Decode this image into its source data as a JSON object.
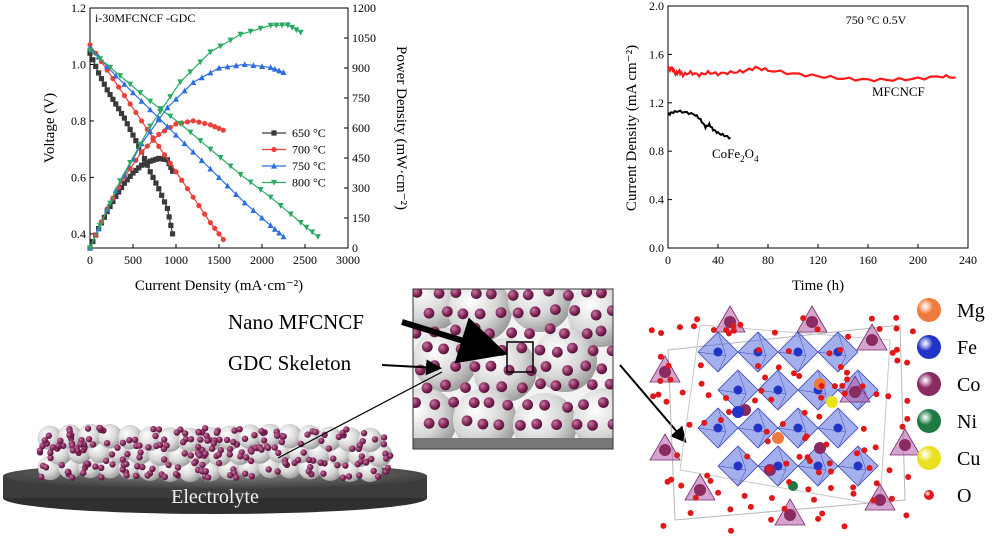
{
  "left_chart": {
    "title": "i-30MFCNCF -GDC",
    "xlabel": "Current Density (mA·cm⁻²)",
    "ylabel_left": "Voltage (V)",
    "ylabel_right": "Power Density (mW·cm⁻²)",
    "xticks": [
      "0",
      "500",
      "1000",
      "1500",
      "2000",
      "2500",
      "3000"
    ],
    "yticks_left": [
      "0.4",
      "0.6",
      "0.8",
      "1.0",
      "1.2"
    ],
    "yticks_right": [
      "0",
      "150",
      "300",
      "450",
      "600",
      "750",
      "900",
      "1050",
      "1200"
    ],
    "legend": [
      "650 °C",
      "700 °C",
      "750 °C",
      "800 °C"
    ]
  },
  "right_chart": {
    "annotation": "750 °C   0.5V",
    "xlabel": "Time (h)",
    "ylabel": "Current Density (mA cm⁻²)",
    "xticks": [
      "0",
      "40",
      "80",
      "120",
      "160",
      "200",
      "240"
    ],
    "yticks": [
      "0.0",
      "0.4",
      "0.8",
      "1.2",
      "1.6",
      "2.0"
    ],
    "label_mfcncf": "MFCNCF",
    "label_cofe_main": "CoFe",
    "label_cofe_sub1": "2",
    "label_cofe_mid": "O",
    "label_cofe_sub2": "4"
  },
  "chart_data": [
    {
      "type": "line",
      "title": "i-30MFCNCF -GDC",
      "xlabel": "Current Density (mA·cm⁻²)",
      "ylabel": "Voltage (V)",
      "y2label": "Power Density (mW·cm⁻²)",
      "xlim": [
        0,
        3000
      ],
      "ylim": [
        0.35,
        1.2
      ],
      "y2lim": [
        0,
        1200
      ],
      "legend_position": "right-middle",
      "series": [
        {
          "name": "650 °C",
          "color": "#3a3a3a",
          "marker": "square",
          "voltage": [
            [
              0,
              1.04
            ],
            [
              100,
              0.97
            ],
            [
              200,
              0.91
            ],
            [
              300,
              0.86
            ],
            [
              400,
              0.81
            ],
            [
              500,
              0.75
            ],
            [
              600,
              0.69
            ],
            [
              700,
              0.62
            ],
            [
              800,
              0.56
            ],
            [
              900,
              0.49
            ],
            [
              960,
              0.4
            ]
          ],
          "power": [
            [
              0,
              0
            ],
            [
              100,
              97
            ],
            [
              200,
              182
            ],
            [
              300,
              258
            ],
            [
              400,
              324
            ],
            [
              500,
              375
            ],
            [
              600,
              414
            ],
            [
              700,
              434
            ],
            [
              800,
              448
            ],
            [
              900,
              441
            ],
            [
              960,
              384
            ]
          ]
        },
        {
          "name": "700 °C",
          "color": "#e8403a",
          "marker": "circle",
          "voltage": [
            [
              0,
              1.07
            ],
            [
              200,
              0.98
            ],
            [
              400,
              0.89
            ],
            [
              600,
              0.8
            ],
            [
              800,
              0.71
            ],
            [
              1000,
              0.62
            ],
            [
              1200,
              0.53
            ],
            [
              1400,
              0.44
            ],
            [
              1550,
              0.38
            ]
          ],
          "power": [
            [
              0,
              0
            ],
            [
              200,
              196
            ],
            [
              400,
              356
            ],
            [
              600,
              480
            ],
            [
              800,
              568
            ],
            [
              1000,
              620
            ],
            [
              1200,
              636
            ],
            [
              1400,
              616
            ],
            [
              1550,
              589
            ]
          ]
        },
        {
          "name": "750 °C",
          "color": "#2f6ee0",
          "marker": "triangle-up",
          "voltage": [
            [
              0,
              1.06
            ],
            [
              300,
              0.96
            ],
            [
              600,
              0.87
            ],
            [
              900,
              0.78
            ],
            [
              1200,
              0.69
            ],
            [
              1500,
              0.6
            ],
            [
              1800,
              0.51
            ],
            [
              2100,
              0.43
            ],
            [
              2250,
              0.39
            ]
          ],
          "power": [
            [
              0,
              0
            ],
            [
              300,
              288
            ],
            [
              600,
              522
            ],
            [
              900,
              702
            ],
            [
              1200,
              828
            ],
            [
              1500,
              900
            ],
            [
              1800,
              918
            ],
            [
              2100,
              903
            ],
            [
              2250,
              878
            ]
          ]
        },
        {
          "name": "800 °C",
          "color": "#2aaa63",
          "marker": "triangle-down",
          "voltage": [
            [
              0,
              1.05
            ],
            [
              350,
              0.96
            ],
            [
              700,
              0.87
            ],
            [
              1050,
              0.79
            ],
            [
              1400,
              0.7
            ],
            [
              1750,
              0.61
            ],
            [
              2100,
              0.53
            ],
            [
              2450,
              0.44
            ],
            [
              2650,
              0.39
            ]
          ],
          "power": [
            [
              0,
              0
            ],
            [
              350,
              336
            ],
            [
              700,
              609
            ],
            [
              1050,
              830
            ],
            [
              1400,
              980
            ],
            [
              1750,
              1068
            ],
            [
              2100,
              1113
            ],
            [
              2300,
              1115
            ],
            [
              2450,
              1078
            ]
          ]
        }
      ]
    },
    {
      "type": "line",
      "xlabel": "Time (h)",
      "ylabel": "Current Density (mA cm⁻²)",
      "xlim": [
        0,
        240
      ],
      "ylim": [
        0,
        2.0
      ],
      "series": [
        {
          "name": "MFCNCF",
          "color": "#ff1a1a",
          "points": [
            [
              0,
              1.47
            ],
            [
              3,
              1.49
            ],
            [
              6,
              1.44
            ],
            [
              9,
              1.46
            ],
            [
              12,
              1.43
            ],
            [
              18,
              1.45
            ],
            [
              25,
              1.43
            ],
            [
              32,
              1.45
            ],
            [
              40,
              1.44
            ],
            [
              50,
              1.45
            ],
            [
              60,
              1.46
            ],
            [
              70,
              1.49
            ],
            [
              80,
              1.47
            ],
            [
              100,
              1.44
            ],
            [
              120,
              1.42
            ],
            [
              140,
              1.4
            ],
            [
              160,
              1.39
            ],
            [
              180,
              1.39
            ],
            [
              200,
              1.4
            ],
            [
              220,
              1.42
            ],
            [
              230,
              1.41
            ]
          ]
        },
        {
          "name": "CoFe2O4",
          "color": "#000000",
          "points": [
            [
              0,
              1.1
            ],
            [
              3,
              1.12
            ],
            [
              8,
              1.13
            ],
            [
              15,
              1.12
            ],
            [
              22,
              1.1
            ],
            [
              26,
              1.06
            ],
            [
              30,
              1.0
            ],
            [
              33,
              1.02
            ],
            [
              36,
              0.98
            ],
            [
              40,
              0.95
            ],
            [
              45,
              0.93
            ],
            [
              50,
              0.91
            ]
          ]
        }
      ]
    }
  ],
  "schematic": {
    "label_nano": "Nano MFCNCF",
    "label_gdc": "GDC Skeleton",
    "label_electrolyte": "Electrolyte"
  },
  "crystal_legend": [
    {
      "name": "Mg",
      "color": "#f07a3c"
    },
    {
      "name": "Fe",
      "color": "#2233c8"
    },
    {
      "name": "Co",
      "color": "#8a2a60"
    },
    {
      "name": "Ni",
      "color": "#1e7a42"
    },
    {
      "name": "Cu",
      "color": "#e8e020"
    },
    {
      "name": "O",
      "color": "#e01818"
    }
  ]
}
